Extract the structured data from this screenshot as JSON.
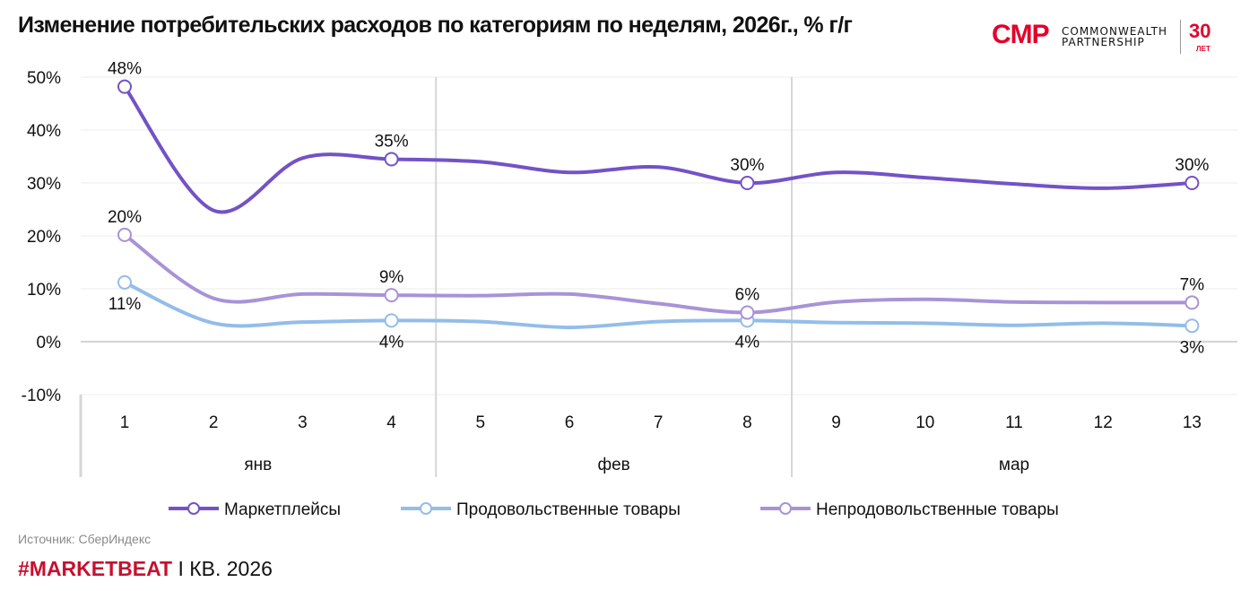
{
  "header": {
    "title": "Изменение потребительских расходов по категориям по неделям, 2026г., % г/г"
  },
  "logo": {
    "mark": "CMP",
    "line1": "COMMONWEALTH",
    "line2": "PARTNERSHIP",
    "years": "30",
    "years_sub": "ЛЕТ",
    "color": "#e4002b"
  },
  "footer": {
    "source": "Источник: СберИндекс",
    "tag": "#MARKETBEAT",
    "rest": " I КВ. 2026"
  },
  "chart_data": {
    "type": "line",
    "title": "Изменение потребительских расходов по категориям по неделям, 2026г., % г/г",
    "xlabel": "",
    "ylabel": "",
    "x": [
      "1",
      "2",
      "3",
      "4",
      "5",
      "6",
      "7",
      "8",
      "9",
      "10",
      "11",
      "12",
      "13"
    ],
    "month_groups": [
      {
        "label": "янв",
        "from": 1,
        "to": 4
      },
      {
        "label": "фев",
        "from": 5,
        "to": 8
      },
      {
        "label": "мар",
        "from": 9,
        "to": 13
      }
    ],
    "ylim": [
      -10,
      50
    ],
    "yticks": [
      -10,
      0,
      10,
      20,
      30,
      40,
      50
    ],
    "ytick_labels": [
      "-10%",
      "0%",
      "10%",
      "20%",
      "30%",
      "40%",
      "50%"
    ],
    "grid": true,
    "legend_position": "bottom",
    "series": [
      {
        "name": "Маркетплейсы",
        "color": "#7352c7",
        "values": [
          48.2,
          24.8,
          34.7,
          34.5,
          34.0,
          32.0,
          33.0,
          30.0,
          32.0,
          31.0,
          29.8,
          29.0,
          30.0
        ],
        "markers": [
          0,
          3,
          7,
          12
        ],
        "labels": [
          {
            "index": 0,
            "text": "48%",
            "pos": "above"
          },
          {
            "index": 3,
            "text": "35%",
            "pos": "above"
          },
          {
            "index": 7,
            "text": "30%",
            "pos": "above"
          },
          {
            "index": 12,
            "text": "30%",
            "pos": "above"
          }
        ]
      },
      {
        "name": "Продовольственные товары",
        "color": "#93bde9",
        "values": [
          11.2,
          3.5,
          3.7,
          4.0,
          3.8,
          2.7,
          3.8,
          4.0,
          3.6,
          3.5,
          3.1,
          3.5,
          3.0
        ],
        "markers": [
          0,
          3,
          7,
          12
        ],
        "labels": [
          {
            "index": 0,
            "text": "11%",
            "pos": "below"
          },
          {
            "index": 3,
            "text": "4%",
            "pos": "below"
          },
          {
            "index": 7,
            "text": "4%",
            "pos": "below"
          },
          {
            "index": 12,
            "text": "3%",
            "pos": "below"
          }
        ]
      },
      {
        "name": "Непродовольственные товары",
        "color": "#a893d7",
        "values": [
          20.2,
          8.2,
          9.0,
          8.8,
          8.7,
          9.0,
          7.2,
          5.5,
          7.5,
          8.0,
          7.5,
          7.4,
          7.4
        ],
        "markers": [
          0,
          3,
          7,
          12
        ],
        "labels": [
          {
            "index": 0,
            "text": "20%",
            "pos": "above"
          },
          {
            "index": 3,
            "text": "9%",
            "pos": "above"
          },
          {
            "index": 7,
            "text": "6%",
            "pos": "above"
          },
          {
            "index": 12,
            "text": "7%",
            "pos": "above"
          }
        ]
      }
    ]
  }
}
